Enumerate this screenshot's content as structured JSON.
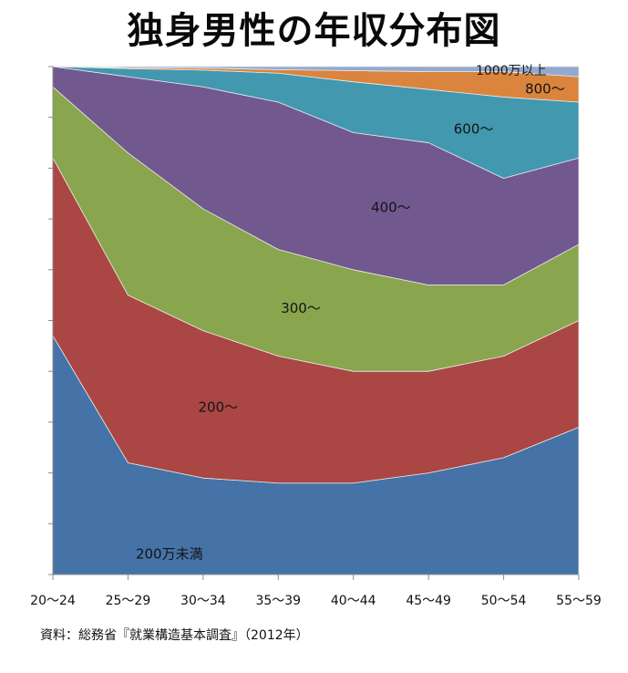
{
  "chart_data": {
    "type": "area",
    "stacked": "percent",
    "title": "独身男性の年収分布図",
    "categories": [
      "20～24",
      "25～29",
      "30～34",
      "35～39",
      "40～44",
      "45～49",
      "50～54",
      "55～59"
    ],
    "ylim": [
      0,
      100
    ],
    "grid": false,
    "legend": "none",
    "series": [
      {
        "name": "200万未満",
        "color": "#4572A7",
        "values": [
          47,
          22,
          19,
          18,
          18,
          20,
          23,
          29
        ]
      },
      {
        "name": "200～",
        "color": "#AA4643",
        "values": [
          35,
          33,
          29,
          25,
          22,
          20,
          20,
          21
        ]
      },
      {
        "name": "300～",
        "color": "#89A54E",
        "values": [
          14,
          28,
          24,
          21,
          20,
          17,
          14,
          15
        ]
      },
      {
        "name": "400～",
        "color": "#71588F",
        "values": [
          4,
          15,
          24,
          29,
          27,
          28,
          21,
          17
        ]
      },
      {
        "name": "600～",
        "color": "#4198AF",
        "values": [
          0,
          1.6,
          3.3,
          5.7,
          10,
          10.5,
          16,
          11
        ]
      },
      {
        "name": "800～",
        "color": "#DB843D",
        "values": [
          0,
          0.2,
          0.4,
          0.7,
          2.2,
          3.5,
          5,
          5
        ]
      },
      {
        "name": "1000万以上",
        "color": "#93A9CF",
        "values": [
          0,
          0.2,
          0.3,
          0.6,
          0.8,
          1,
          1,
          2
        ]
      }
    ],
    "source": "資料：総務省『就業構造基本調査』（2012年）"
  }
}
